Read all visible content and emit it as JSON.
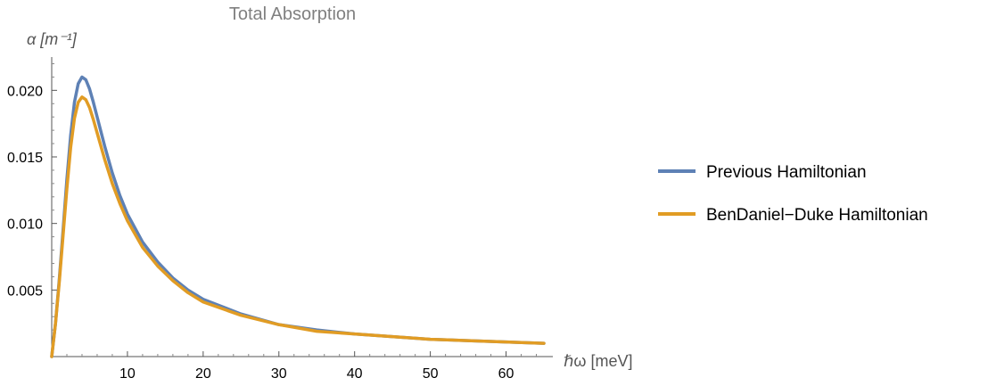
{
  "chart_data": {
    "type": "line",
    "title": "Total Absorption",
    "ylabel": "α [m⁻¹]",
    "xlabel": "ℏω [meV]",
    "xlim": [
      0,
      65
    ],
    "ylim": [
      0,
      0.0225
    ],
    "xticks": [
      10,
      20,
      30,
      40,
      50,
      60
    ],
    "xtick_labels": [
      "10",
      "20",
      "30",
      "40",
      "50",
      "60"
    ],
    "yticks": [
      0.005,
      0.01,
      0.015,
      0.02
    ],
    "ytick_labels": [
      "0.005",
      "0.010",
      "0.015",
      "0.020"
    ],
    "legend_position": "right",
    "grid": false,
    "series": [
      {
        "name": "Previous Hamiltonian",
        "color": "#5e81b5",
        "x": [
          0,
          0.5,
          1,
          1.5,
          2,
          2.5,
          3,
          3.5,
          4,
          4.5,
          5,
          5.5,
          6,
          7,
          8,
          9,
          10,
          12,
          14,
          16,
          18,
          20,
          25,
          30,
          35,
          40,
          45,
          50,
          55,
          60,
          65
        ],
        "y": [
          0,
          0.0025,
          0.0058,
          0.0095,
          0.0133,
          0.0166,
          0.0191,
          0.0205,
          0.021,
          0.0208,
          0.0201,
          0.0191,
          0.018,
          0.0158,
          0.0138,
          0.0121,
          0.0107,
          0.0086,
          0.0071,
          0.0059,
          0.005,
          0.0043,
          0.0032,
          0.0024,
          0.002,
          0.0017,
          0.0015,
          0.0013,
          0.0012,
          0.0011,
          0.001
        ]
      },
      {
        "name": "BenDaniel−Duke Hamiltonian",
        "color": "#e19c24",
        "x": [
          0,
          0.5,
          1,
          1.5,
          2,
          2.5,
          3,
          3.5,
          4,
          4.5,
          5,
          5.5,
          6,
          7,
          8,
          9,
          10,
          12,
          14,
          16,
          18,
          20,
          25,
          30,
          35,
          40,
          45,
          50,
          55,
          60,
          65
        ],
        "y": [
          0,
          0.0025,
          0.0056,
          0.0091,
          0.0126,
          0.0157,
          0.0179,
          0.0191,
          0.0195,
          0.0193,
          0.0187,
          0.0178,
          0.0168,
          0.0148,
          0.013,
          0.0115,
          0.0102,
          0.0082,
          0.0068,
          0.0057,
          0.0048,
          0.0041,
          0.0031,
          0.0024,
          0.0019,
          0.0017,
          0.0015,
          0.0013,
          0.0012,
          0.0011,
          0.001
        ]
      }
    ]
  }
}
